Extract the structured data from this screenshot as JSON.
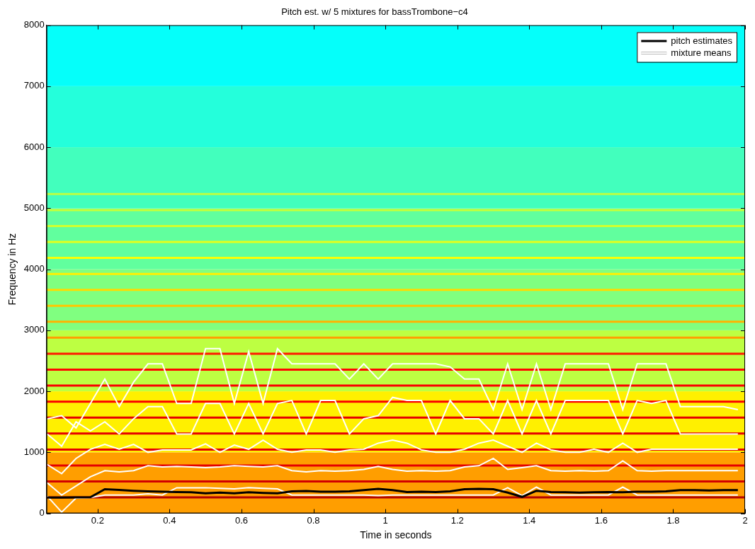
{
  "chart_data": {
    "type": "line",
    "title": "Pitch est. w/ 5 mixtures for bassTrombone−c4",
    "x_label": "Time in seconds",
    "y_label": "Frequency in Hz",
    "x": [
      0.06,
      0.1,
      0.14,
      0.18,
      0.22,
      0.26,
      0.3,
      0.34,
      0.38,
      0.42,
      0.46,
      0.5,
      0.54,
      0.58,
      0.62,
      0.66,
      0.7,
      0.74,
      0.78,
      0.82,
      0.86,
      0.9,
      0.94,
      0.98,
      1.02,
      1.06,
      1.1,
      1.14,
      1.18,
      1.22,
      1.26,
      1.3,
      1.34,
      1.38,
      1.42,
      1.46,
      1.5,
      1.54,
      1.58,
      1.62,
      1.66,
      1.7,
      1.74,
      1.78,
      1.82,
      1.86,
      1.9,
      1.94,
      1.98
    ],
    "series": [
      {
        "name": "pitch estimates",
        "color": "#000000",
        "line_style": "solid",
        "values": [
          260,
          260,
          262,
          265,
          395,
          385,
          370,
          360,
          355,
          350,
          345,
          330,
          340,
          330,
          345,
          335,
          330,
          360,
          365,
          355,
          355,
          360,
          380,
          400,
          380,
          350,
          355,
          350,
          360,
          395,
          400,
          395,
          340,
          270,
          370,
          350,
          345,
          340,
          345,
          350,
          345,
          355,
          355,
          360,
          380,
          380,
          375,
          380,
          380
        ]
      },
      {
        "name": "mixture means",
        "color": "#ffffff",
        "line_style": "solid",
        "tracks": [
          [
            280,
            20,
            250,
            260,
            300,
            300,
            300,
            320,
            300,
            420,
            420,
            420,
            410,
            400,
            420,
            410,
            400,
            300,
            300,
            300,
            300,
            300,
            300,
            290,
            300,
            300,
            300,
            300,
            300,
            300,
            300,
            300,
            420,
            290,
            430,
            300,
            300,
            300,
            300,
            300,
            430,
            300,
            300,
            300,
            300,
            300,
            300,
            300,
            300
          ],
          [
            500,
            300,
            450,
            600,
            700,
            680,
            700,
            780,
            760,
            770,
            760,
            750,
            760,
            780,
            770,
            760,
            780,
            700,
            680,
            700,
            690,
            700,
            720,
            770,
            720,
            690,
            700,
            690,
            700,
            760,
            780,
            900,
            720,
            750,
            780,
            700,
            690,
            700,
            690,
            700,
            860,
            700,
            690,
            700,
            700,
            700,
            700,
            700,
            700
          ],
          [
            800,
            650,
            900,
            1050,
            1130,
            1050,
            1130,
            1000,
            1040,
            1040,
            1040,
            1140,
            1000,
            1120,
            1050,
            1200,
            1050,
            1000,
            1040,
            1040,
            1000,
            1040,
            1050,
            1150,
            1200,
            1150,
            1040,
            1000,
            1000,
            1050,
            1150,
            1200,
            1100,
            1000,
            1150,
            1040,
            1000,
            1000,
            1050,
            1000,
            1150,
            1000,
            1050,
            1050,
            1050,
            1050,
            1050,
            1050,
            1050
          ],
          [
            1300,
            1100,
            1500,
            1350,
            1500,
            1300,
            1550,
            1750,
            1750,
            1300,
            1300,
            1800,
            1800,
            1300,
            1800,
            1300,
            1800,
            1850,
            1300,
            1850,
            1850,
            1300,
            1550,
            1600,
            1900,
            1850,
            1850,
            1300,
            1850,
            1550,
            1550,
            1300,
            1850,
            1300,
            1850,
            1300,
            1850,
            1850,
            1850,
            1850,
            1300,
            1850,
            1800,
            1850,
            1300,
            1300,
            1300,
            1300,
            1300
          ],
          [
            1550,
            1600,
            1400,
            1800,
            2200,
            1750,
            2150,
            2450,
            2450,
            1800,
            1800,
            2700,
            2700,
            1800,
            2650,
            1800,
            2700,
            2450,
            2450,
            2450,
            2450,
            2200,
            2450,
            2200,
            2450,
            2450,
            2450,
            2450,
            2400,
            2200,
            2200,
            1700,
            2450,
            1700,
            2450,
            1700,
            2450,
            2450,
            2450,
            2450,
            1700,
            2450,
            2450,
            2450,
            1750,
            1750,
            1750,
            1750,
            1700
          ]
        ]
      }
    ],
    "spectrogram": {
      "band_edges": [
        0,
        1000,
        2000,
        3000,
        4000,
        5000,
        6000,
        7000,
        8000
      ],
      "band_levels": [
        0.72,
        0.64,
        0.56,
        0.5,
        0.47,
        0.44,
        0.41,
        0.38
      ],
      "harmonics": [
        262,
        523,
        785,
        1046,
        1308,
        1570,
        1831,
        2093,
        2354,
        2616,
        2878,
        3139,
        3401,
        3662,
        3924,
        4186,
        4447,
        4709,
        4970,
        5232
      ],
      "harmonic_levels": [
        0.95,
        0.92,
        0.9,
        0.9,
        0.9,
        0.9,
        0.88,
        0.88,
        0.87,
        0.85,
        0.72,
        0.7,
        0.68,
        0.66,
        0.64,
        0.62,
        0.6,
        0.58,
        0.57,
        0.56
      ]
    },
    "xlim": [
      0.058,
      2
    ],
    "xticks": [
      0.2,
      0.4,
      0.6,
      0.8,
      1,
      1.2,
      1.4,
      1.6,
      1.8,
      2
    ],
    "ylim": [
      0,
      8000
    ],
    "yticks": [
      0,
      1000,
      2000,
      3000,
      4000,
      5000,
      6000,
      7000,
      8000
    ],
    "grid": false,
    "legend": "upper right"
  }
}
